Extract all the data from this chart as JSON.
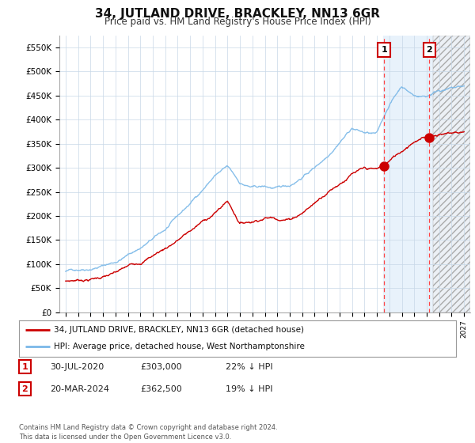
{
  "title": "34, JUTLAND DRIVE, BRACKLEY, NN13 6GR",
  "subtitle": "Price paid vs. HM Land Registry's House Price Index (HPI)",
  "ylabel_ticks": [
    "£0",
    "£50K",
    "£100K",
    "£150K",
    "£200K",
    "£250K",
    "£300K",
    "£350K",
    "£400K",
    "£450K",
    "£500K",
    "£550K"
  ],
  "ytick_values": [
    0,
    50000,
    100000,
    150000,
    200000,
    250000,
    300000,
    350000,
    400000,
    450000,
    500000,
    550000
  ],
  "ylim": [
    0,
    575000
  ],
  "xlim_start": 1994.5,
  "xlim_end": 2027.5,
  "hpi_color": "#7ab8e8",
  "price_color": "#cc0000",
  "hpi_fill_color": "#ddeeff",
  "hatch_start": 2024.5,
  "blue_fill_start": 2020.5,
  "transaction1": {
    "date_num": 2020.58,
    "price": 303000,
    "label": "1"
  },
  "transaction2": {
    "date_num": 2024.22,
    "price": 362500,
    "label": "2"
  },
  "legend_label1": "34, JUTLAND DRIVE, BRACKLEY, NN13 6GR (detached house)",
  "legend_label2": "HPI: Average price, detached house, West Northamptonshire",
  "table_row1": [
    "1",
    "30-JUL-2020",
    "£303,000",
    "22% ↓ HPI"
  ],
  "table_row2": [
    "2",
    "20-MAR-2024",
    "£362,500",
    "19% ↓ HPI"
  ],
  "footer": "Contains HM Land Registry data © Crown copyright and database right 2024.\nThis data is licensed under the Open Government Licence v3.0.",
  "background_color": "#ffffff",
  "grid_color": "#c8d8e8"
}
